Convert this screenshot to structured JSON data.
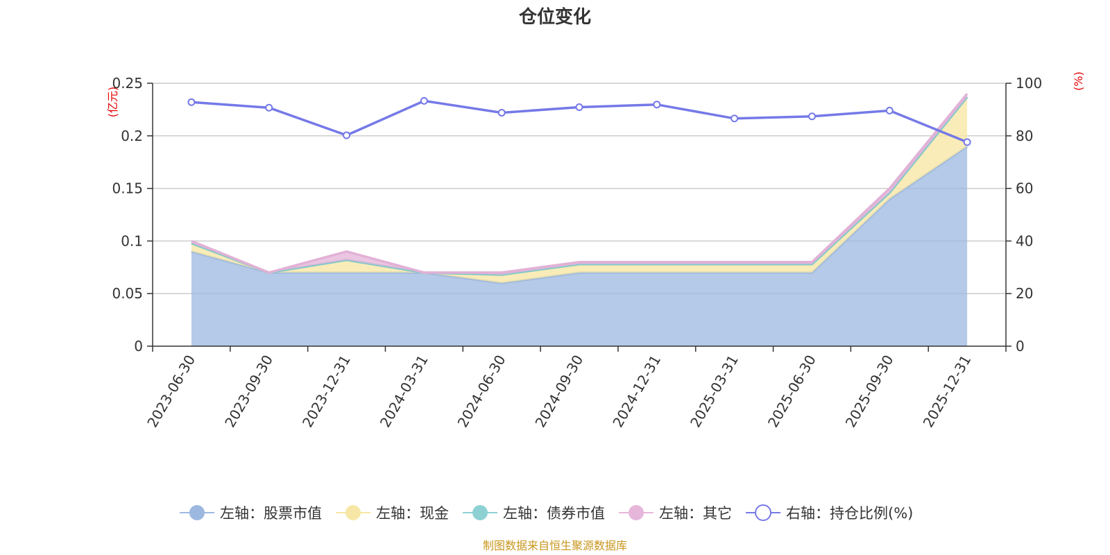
{
  "chart_data": {
    "type": "area",
    "title": "仓位变化",
    "categories": [
      "2023-06-30",
      "2023-09-30",
      "2023-12-31",
      "2024-03-31",
      "2024-06-30",
      "2024-09-30",
      "2024-12-31",
      "2025-03-31",
      "2025-06-30",
      "2025-09-30",
      "2025-12-31"
    ],
    "left_axis": {
      "unit": "(亿元)",
      "ylim": [
        0,
        0.25
      ],
      "ticks": [
        "0",
        "0.05",
        "0.1",
        "0.15",
        "0.2",
        "0.25"
      ]
    },
    "right_axis": {
      "unit": "(%)",
      "ylim": [
        0,
        100
      ],
      "ticks": [
        "0",
        "20",
        "40",
        "60",
        "80",
        "100"
      ]
    },
    "stacked": true,
    "series": [
      {
        "name": "左轴：股票市值",
        "axis": "left",
        "type": "area",
        "color": "#9cb8e0",
        "values": [
          0.09,
          0.07,
          0.07,
          0.07,
          0.06,
          0.07,
          0.07,
          0.07,
          0.07,
          0.14,
          0.19
        ]
      },
      {
        "name": "左轴：现金",
        "axis": "left",
        "type": "area",
        "color": "#f7e7a6",
        "values": [
          0.008,
          0.0,
          0.012,
          0.0,
          0.008,
          0.008,
          0.008,
          0.008,
          0.008,
          0.006,
          0.047
        ]
      },
      {
        "name": "左轴：债券市值",
        "axis": "left",
        "type": "area",
        "color": "#8ed1d3",
        "values": [
          0,
          0,
          0,
          0,
          0,
          0,
          0,
          0,
          0,
          0,
          0
        ]
      },
      {
        "name": "左轴：其它",
        "axis": "left",
        "type": "area",
        "color": "#e6b6da",
        "values": [
          0.002,
          0.0,
          0.008,
          0.0,
          0.002,
          0.002,
          0.002,
          0.002,
          0.002,
          0.004,
          0.003
        ]
      },
      {
        "name": "右轴：持仓比例(%)",
        "axis": "right",
        "type": "line",
        "color": "#7579e7",
        "values": [
          92.8,
          90.7,
          80.2,
          93.3,
          88.8,
          90.9,
          91.9,
          86.6,
          87.4,
          89.6,
          77.6
        ]
      }
    ],
    "grid": true,
    "legend_position": "bottom"
  },
  "source_note": "制图数据来自恒生聚源数据库"
}
